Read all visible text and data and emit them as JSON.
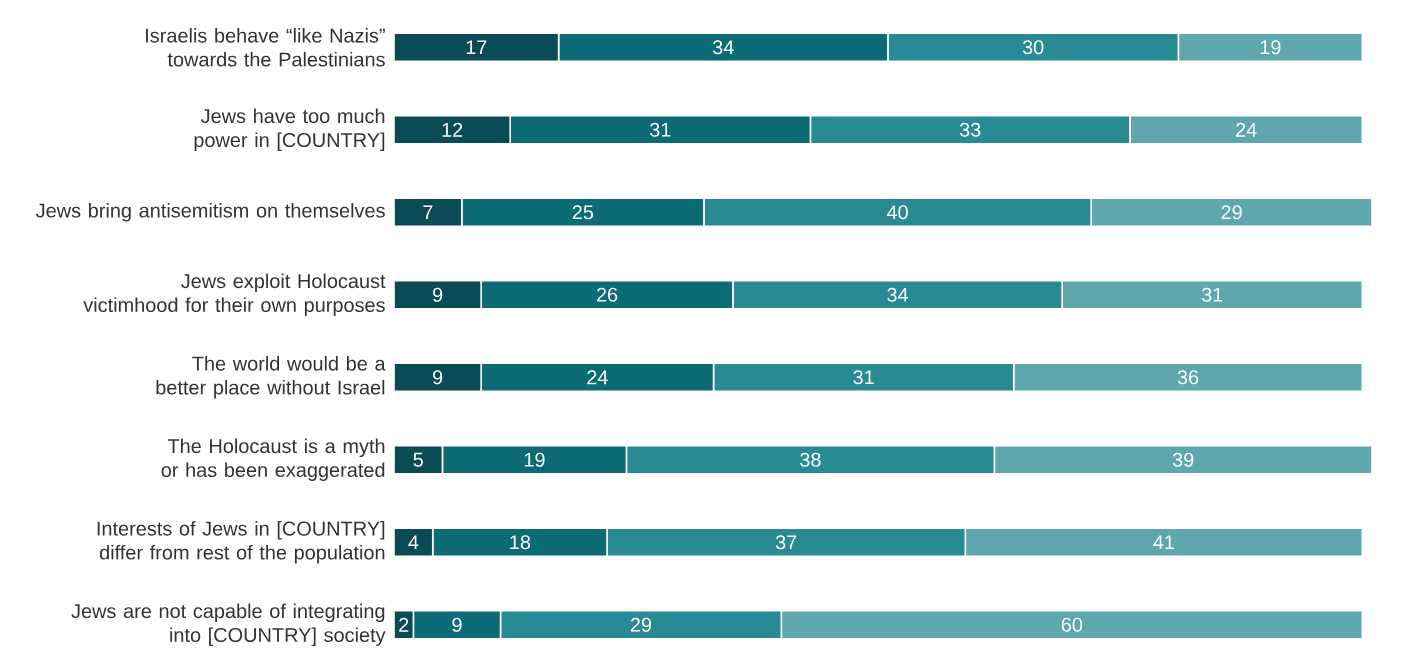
{
  "chart_data": {
    "type": "bar",
    "orientation": "horizontal",
    "stacked": true,
    "data_labels": true,
    "categories": [
      "Israelis behave “like Nazis” towards the Palestinians",
      "Jews have too much power in [COUNTRY]",
      "Jews bring antisemitism on themselves",
      "Jews exploit Holocaust victimhood for their own purposes",
      "The world would be a better place without Israel",
      "The Holocaust is a myth or has been exaggerated",
      "Interests of Jews in [COUNTRY] differ from rest of the population",
      "Jews are not capable of integrating into [COUNTRY] society"
    ],
    "series": [
      {
        "color": "#0b4b56",
        "values": [
          17,
          12,
          7,
          9,
          9,
          5,
          4,
          2
        ]
      },
      {
        "color": "#0d6b75",
        "values": [
          34,
          31,
          25,
          26,
          24,
          19,
          18,
          9
        ]
      },
      {
        "color": "#2a8a93",
        "values": [
          30,
          33,
          40,
          34,
          31,
          38,
          37,
          29
        ]
      },
      {
        "color": "#5fa6ad",
        "values": [
          19,
          24,
          29,
          31,
          36,
          39,
          41,
          60
        ]
      }
    ]
  }
}
